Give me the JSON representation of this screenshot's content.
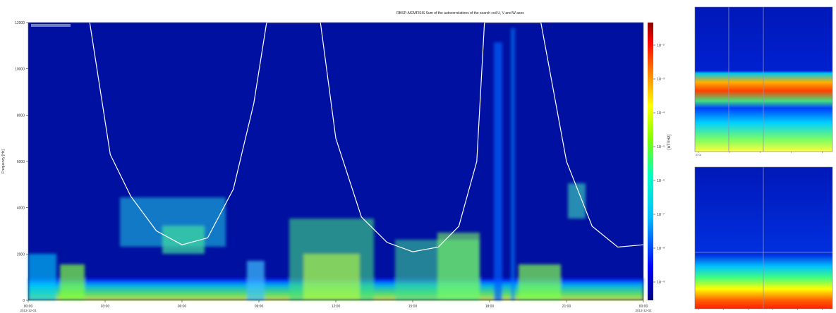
{
  "chart_data": [
    {
      "type": "heatmap",
      "title": "RBSP-A/EMFISIS Sum of the autocorrelations of the search coil U, V and W axes",
      "xlabel": "",
      "ylabel": "Frequency [Hz]",
      "colorbar_label": "[nT²/Hz]",
      "x_ticks": [
        "00:00",
        "03:00",
        "06:00",
        "09:00",
        "12:00",
        "15:00",
        "18:00",
        "21:00",
        "00:00"
      ],
      "x_tick_dates": [
        "2013-12-01",
        "2013-12-02"
      ],
      "y_ticks": [
        0,
        2000,
        4000,
        6000,
        8000,
        10000,
        12000
      ],
      "ylim": [
        0,
        12000
      ],
      "colorbar_ticks": [
        "10⁻²",
        "10⁻³",
        "10⁻⁴",
        "10⁻⁵",
        "10⁻⁶",
        "10⁻⁷",
        "10⁻⁸",
        "10⁻⁹"
      ],
      "overlay_line": {
        "color": "#ffffff",
        "x_hours": [
          2.4,
          3.2,
          4.0,
          5.0,
          6.0,
          7.0,
          8.0,
          8.8,
          9.3,
          11.4,
          12.0,
          13.0,
          14.0,
          15.0,
          16.0,
          16.8,
          17.5,
          17.8,
          20.0,
          21.0,
          22.0,
          23.0,
          24.0
        ],
        "y_hz": [
          12000,
          6300,
          4500,
          3000,
          2400,
          2700,
          4800,
          8500,
          12000,
          12000,
          7000,
          3600,
          2500,
          2100,
          2300,
          3200,
          6000,
          12000,
          12000,
          6000,
          3200,
          2300,
          2400
        ]
      }
    },
    {
      "type": "heatmap",
      "title": "",
      "x_ticks": [
        "00:0x",
        "",
        "",
        "",
        ""
      ]
    },
    {
      "type": "heatmap",
      "title": "",
      "x_ticks": [
        "",
        "",
        "",
        "",
        "",
        ""
      ]
    }
  ],
  "colors": {
    "background_low": "#00008b",
    "colorbar_stops": [
      "#00007f",
      "#0000ff",
      "#00bfff",
      "#00ff7f",
      "#ffff00",
      "#ff7f00",
      "#ff0000",
      "#8b0000"
    ]
  }
}
